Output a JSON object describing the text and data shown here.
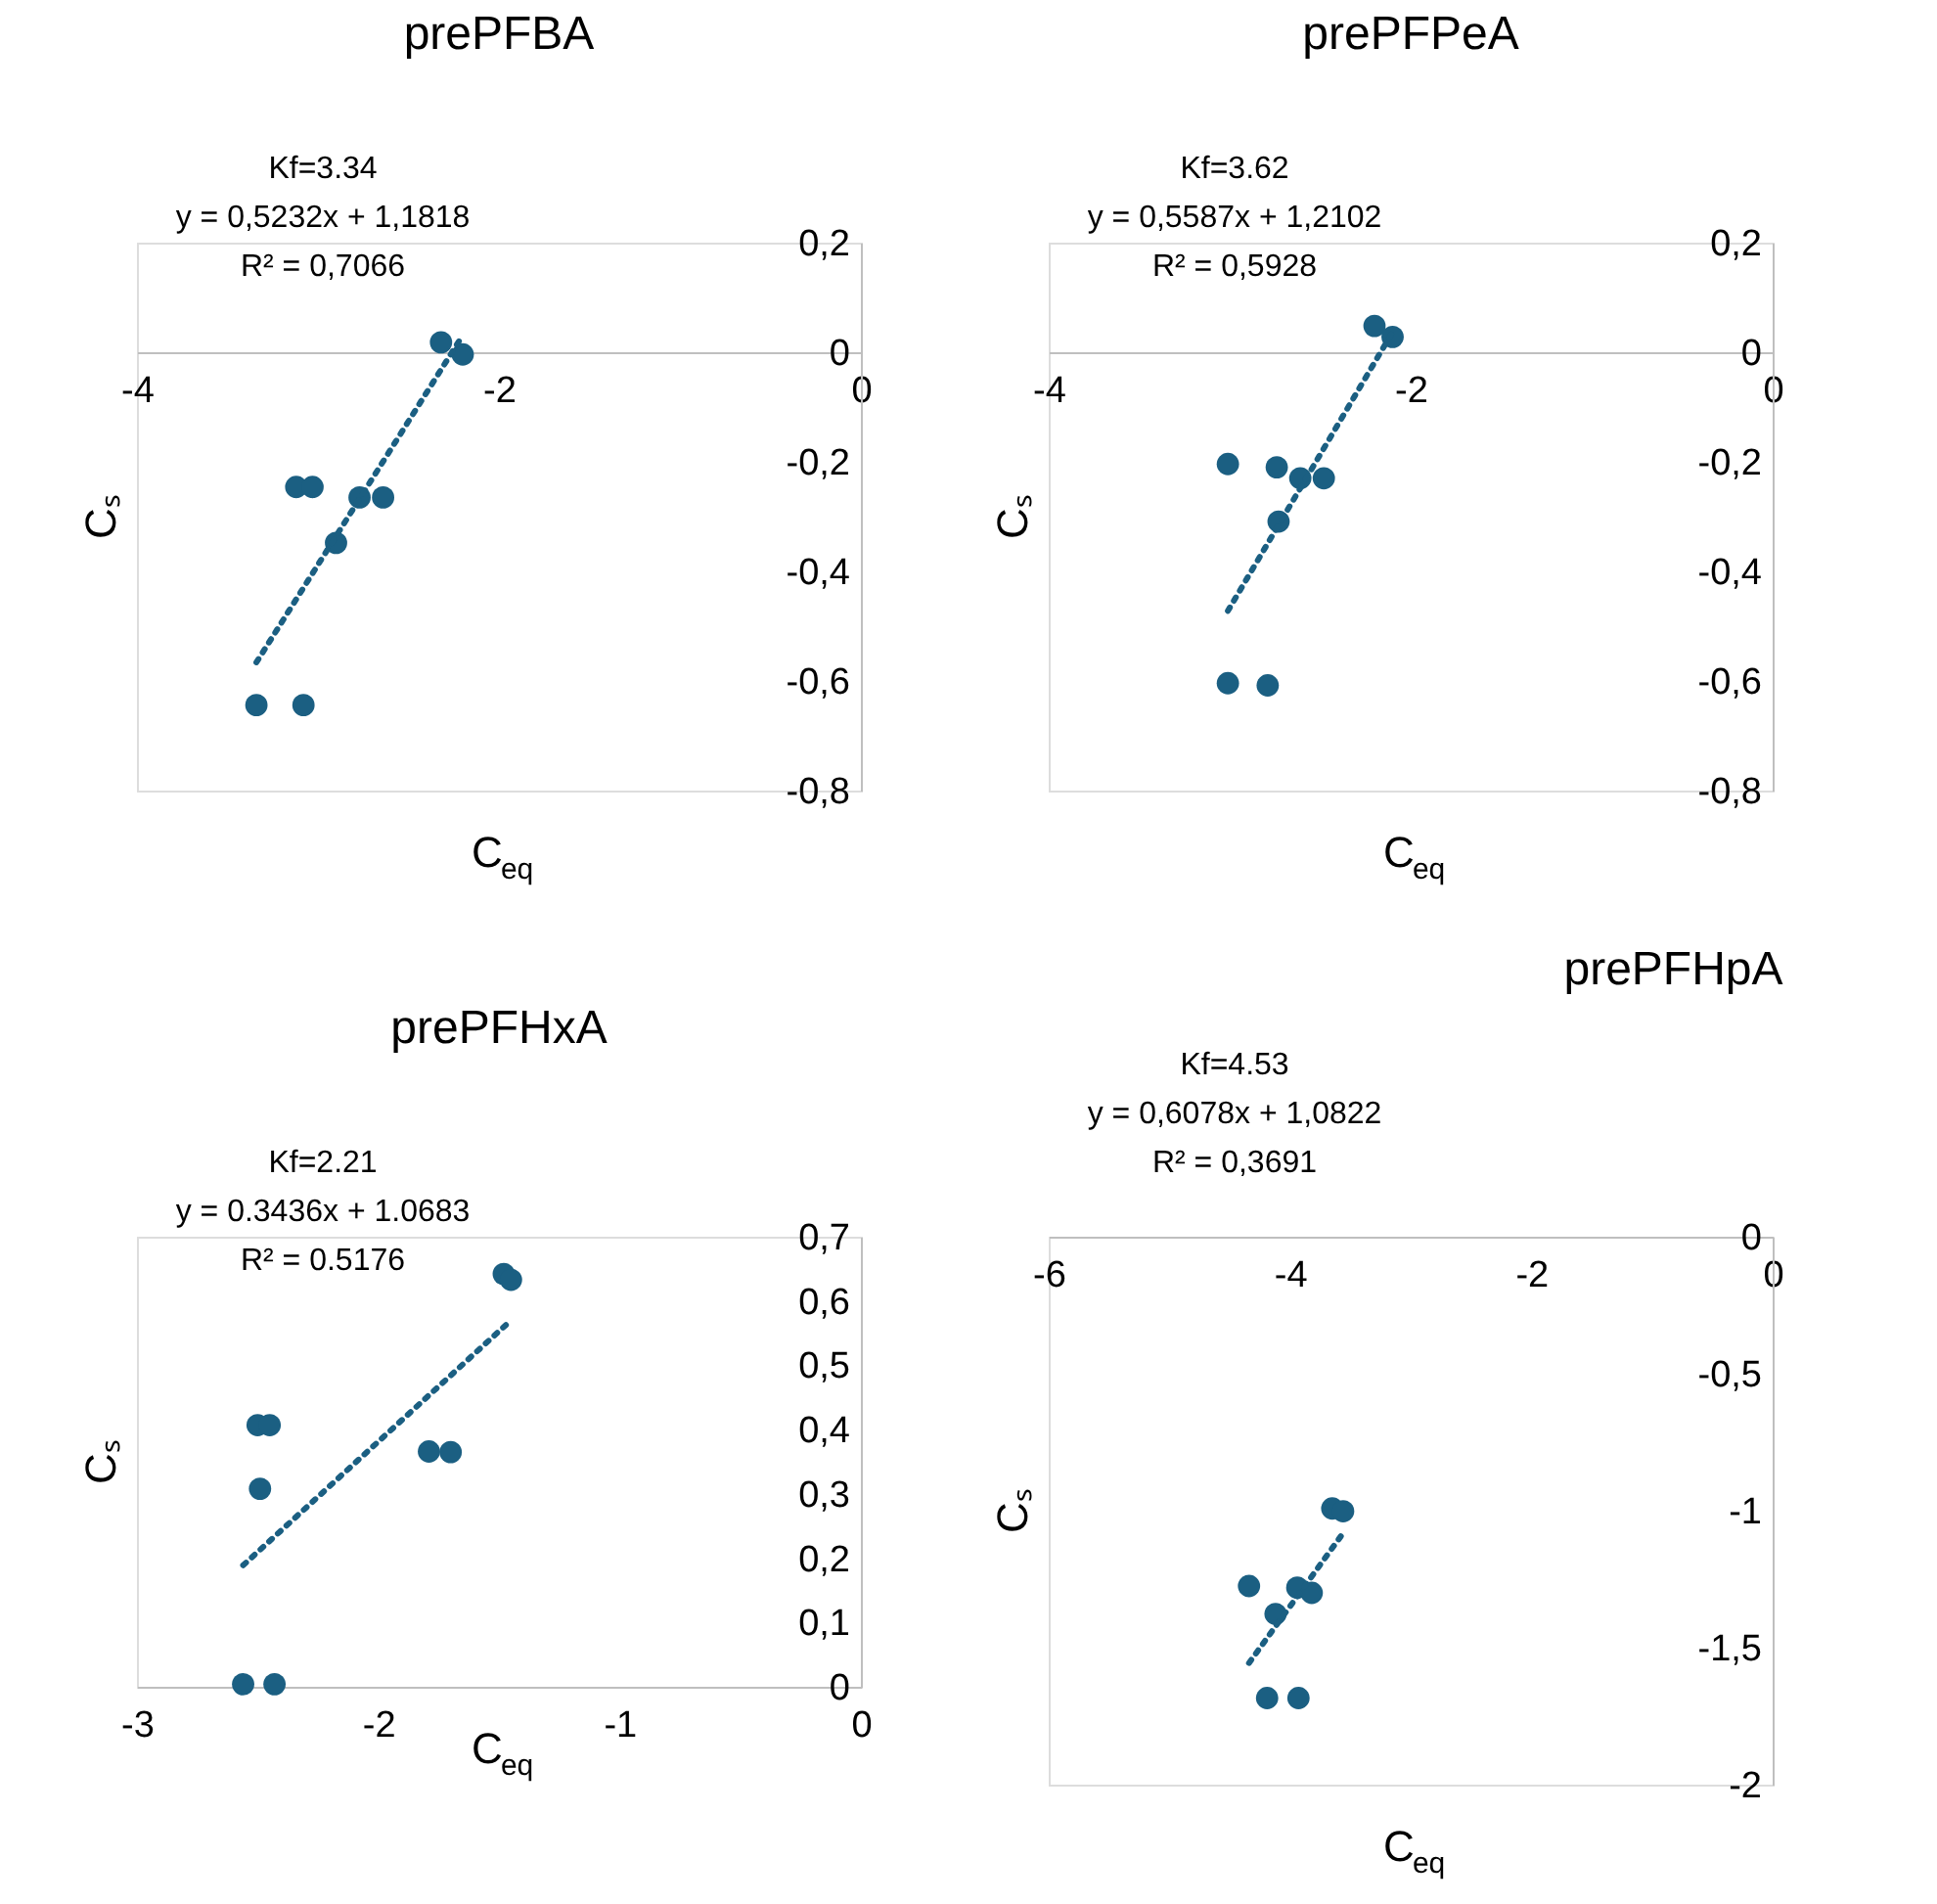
{
  "chart_data": [
    {
      "type": "scatter",
      "title": "prePFBA",
      "xlabel": "C$_{eq}$",
      "ylabel": "Cₛ",
      "annotations": [
        "Kf=3.34",
        "y = 0,5232x + 1,1818",
        "R² = 0,7066"
      ],
      "grid": false,
      "xlim": [
        -4,
        0
      ],
      "ylim": [
        -0.8,
        0.2
      ],
      "xticks": [
        -4,
        -2,
        0
      ],
      "yticks": [
        {
          "value": 0.2,
          "label": "0,2"
        },
        0,
        {
          "value": -0.2,
          "label": "-0,2"
        },
        {
          "value": -0.4,
          "label": "-0,4"
        },
        {
          "value": -0.6,
          "label": "-0,6"
        },
        {
          "value": -0.8,
          "label": "-0,8"
        }
      ],
      "series": [
        {
          "marker": "circle",
          "color": "#1b5f82",
          "x": [
            -2.32,
            -2.2,
            -3.12,
            -3.03,
            -2.77,
            -2.64,
            -2.9,
            -3.34,
            -3.08
          ],
          "values": [
            0.018,
            -0.004,
            -0.246,
            -0.246,
            -0.265,
            -0.265,
            -0.348,
            -0.644,
            -0.644
          ]
        },
        {
          "type": "line",
          "color": "#1b5f82",
          "line_style": "dotted",
          "x": [
            -3.34,
            -2.2
          ],
          "values": [
            -0.566,
            0.031
          ]
        }
      ]
    },
    {
      "type": "scatter",
      "title": "prePFPeA",
      "xlabel": "C$_{eq}$",
      "ylabel": "Cₛ",
      "annotations": [
        "Kf=3.62",
        "y = 0,5587x + 1,2102",
        "R² = 0,5928"
      ],
      "grid": false,
      "xlim": [
        -4,
        0
      ],
      "ylim": [
        -0.8,
        0.2
      ],
      "xticks": [
        -4,
        -2,
        0
      ],
      "yticks": [
        {
          "value": 0.2,
          "label": "0,2"
        },
        0,
        {
          "value": -0.2,
          "label": "-0,2"
        },
        {
          "value": -0.4,
          "label": "-0,4"
        },
        {
          "value": -0.6,
          "label": "-0,6"
        },
        {
          "value": -0.8,
          "label": "-0,8"
        }
      ],
      "series": [
        {
          "marker": "circle",
          "color": "#1b5f82",
          "x": [
            -2.2,
            -2.1,
            -3.01,
            -2.74,
            -2.61,
            -2.48,
            -2.73,
            -3.01,
            -2.79
          ],
          "values": [
            0.048,
            0.028,
            -0.204,
            -0.21,
            -0.23,
            -0.23,
            -0.309,
            -0.604,
            -0.608
          ]
        },
        {
          "type": "line",
          "color": "#1b5f82",
          "line_style": "dotted",
          "x": [
            -3.01,
            -2.1
          ],
          "values": [
            -0.472,
            0.037
          ]
        }
      ]
    },
    {
      "type": "scatter",
      "title": "prePFHxA",
      "xlabel": "C$_{eq}$",
      "ylabel": "Cₛ",
      "annotations": [
        "Kf=2.21",
        "y = 0.3436x + 1.0683",
        "R² = 0.5176"
      ],
      "grid": false,
      "xlim": [
        -3,
        0
      ],
      "ylim": [
        0,
        0.7
      ],
      "xticks": [
        -3,
        -2,
        -1,
        0
      ],
      "yticks": [
        0,
        {
          "value": 0.1,
          "label": "0,1"
        },
        {
          "value": 0.2,
          "label": "0,2"
        },
        {
          "value": 0.3,
          "label": "0,3"
        },
        {
          "value": 0.4,
          "label": "0,4"
        },
        {
          "value": 0.5,
          "label": "0,5"
        },
        {
          "value": 0.6,
          "label": "0,6"
        },
        {
          "value": 0.7,
          "label": "0,7"
        }
      ],
      "series": [
        {
          "marker": "circle",
          "color": "#1b5f82",
          "x": [
            -1.48,
            -1.45,
            -2.5,
            -2.45,
            -1.79,
            -1.7,
            -2.49,
            -2.56,
            -2.43
          ],
          "values": [
            0.642,
            0.633,
            0.407,
            0.407,
            0.366,
            0.365,
            0.308,
            0.004,
            0.004
          ]
        },
        {
          "type": "line",
          "color": "#1b5f82",
          "line_style": "dotted",
          "x": [
            -2.56,
            -1.45
          ],
          "values": [
            0.189,
            0.57
          ]
        }
      ]
    },
    {
      "type": "scatter",
      "title": "prePFHpA",
      "xlabel": "C$_{eq}$",
      "ylabel": "Cₛ",
      "annotations": [
        "Kf=4.53",
        "y = 0,6078x + 1,0822",
        "R² = 0,3691"
      ],
      "grid": false,
      "xlim": [
        -6,
        0
      ],
      "ylim": [
        -2,
        0
      ],
      "xticks": [
        -6,
        -4,
        -2,
        0
      ],
      "yticks": [
        0,
        {
          "value": -0.5,
          "label": "-0,5"
        },
        -1,
        {
          "value": -1.5,
          "label": "-1,5"
        },
        -2
      ],
      "series": [
        {
          "marker": "circle",
          "color": "#1b5f82",
          "x": [
            -3.65,
            -3.56,
            -4.34,
            -3.94,
            -3.82,
            -4.12,
            -4.19,
            -3.93
          ],
          "values": [
            -0.992,
            -1.002,
            -1.275,
            -1.281,
            -1.3,
            -1.377,
            -1.684,
            -1.684
          ]
        },
        {
          "type": "line",
          "color": "#1b5f82",
          "line_style": "dotted",
          "x": [
            -4.34,
            -3.56
          ],
          "values": [
            -1.556,
            -1.082
          ]
        }
      ]
    }
  ]
}
